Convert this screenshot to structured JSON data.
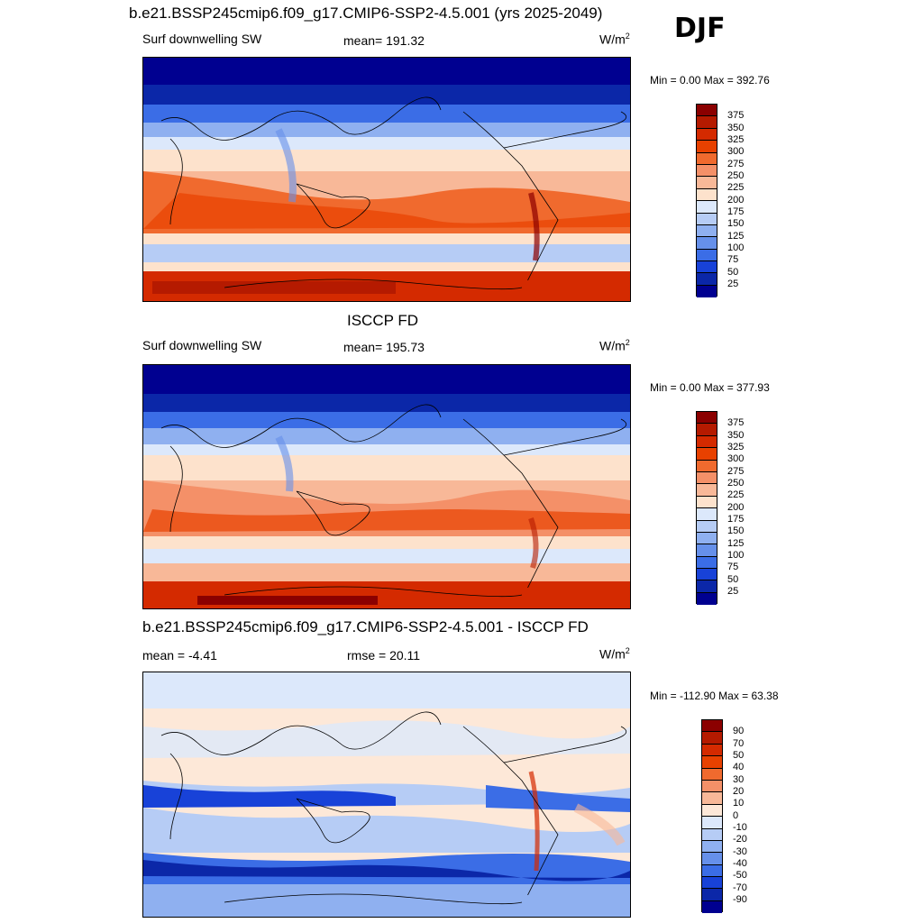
{
  "season": "DJF",
  "panels": [
    {
      "title": "b.e21.BSSP245cmip6.f09_g17.CMIP6-SSP2-4.5.001 (yrs 2025-2049)",
      "left_label": "Surf downwelling SW",
      "center_label": "mean= 191.32",
      "units": "W/m",
      "units_sup": "2",
      "minmax": "Min =   0.00 Max = 392.76",
      "colorbar_labels": [
        "375",
        "350",
        "325",
        "300",
        "275",
        "250",
        "225",
        "200",
        "175",
        "150",
        "125",
        "100",
        "75",
        "50",
        "25"
      ],
      "colorbar_colors": [
        "#8b0000",
        "#b51a00",
        "#d42a00",
        "#e84100",
        "#f06a2e",
        "#f49068",
        "#f8b898",
        "#fde2cc",
        "#dce8fb",
        "#b6ccf5",
        "#8fb0f0",
        "#6690ea",
        "#3b6de6",
        "#1842d8",
        "#0b27a8",
        "#000090"
      ]
    },
    {
      "title": "ISCCP FD",
      "left_label": "Surf downwelling SW",
      "center_label": "mean= 195.73",
      "units": "W/m",
      "units_sup": "2",
      "minmax": "Min =   0.00 Max = 377.93",
      "colorbar_labels": [
        "375",
        "350",
        "325",
        "300",
        "275",
        "250",
        "225",
        "200",
        "175",
        "150",
        "125",
        "100",
        "75",
        "50",
        "25"
      ],
      "colorbar_colors": [
        "#8b0000",
        "#b51a00",
        "#d42a00",
        "#e84100",
        "#f06a2e",
        "#f49068",
        "#f8b898",
        "#fde2cc",
        "#dce8fb",
        "#b6ccf5",
        "#8fb0f0",
        "#6690ea",
        "#3b6de6",
        "#1842d8",
        "#0b27a8",
        "#000090"
      ]
    },
    {
      "title": "b.e21.BSSP245cmip6.f09_g17.CMIP6-SSP2-4.5.001 - ISCCP FD",
      "left_label": "mean =  -4.41",
      "center_label": "rmse =  20.11",
      "units": "W/m",
      "units_sup": "2",
      "minmax": "Min = -112.90 Max =  63.38",
      "colorbar_labels": [
        "90",
        "70",
        "50",
        "40",
        "30",
        "20",
        "10",
        "0",
        "-10",
        "-20",
        "-30",
        "-40",
        "-50",
        "-70",
        "-90"
      ],
      "colorbar_colors": [
        "#8b0000",
        "#b51a00",
        "#d42a00",
        "#e84100",
        "#f06a2e",
        "#f49068",
        "#f8b898",
        "#fde8d8",
        "#dce8fb",
        "#b6ccf5",
        "#8fb0f0",
        "#6690ea",
        "#3b6de6",
        "#1842d8",
        "#0b27a8",
        "#000090"
      ]
    }
  ]
}
